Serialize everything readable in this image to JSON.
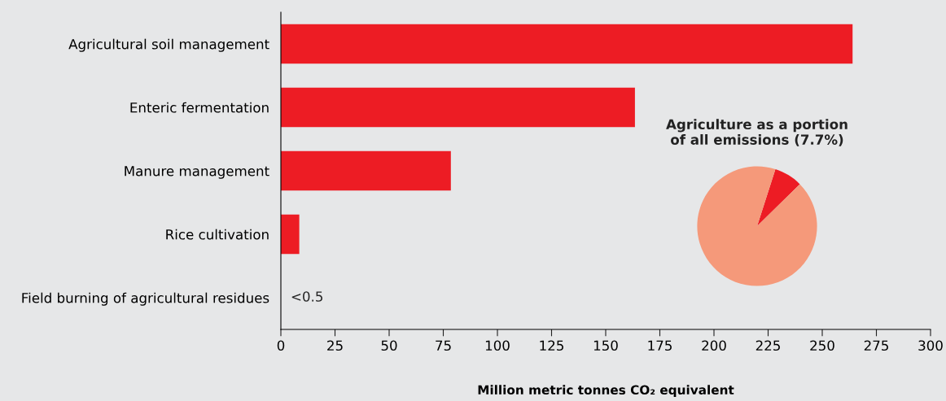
{
  "chart_data": [
    {
      "type": "bar",
      "orientation": "horizontal",
      "categories": [
        "Agricultural soil management",
        "Enteric fermentation",
        "Manure management",
        "Rice cultivation",
        "Field burning of agricultural residues"
      ],
      "values": [
        264,
        163.5,
        78.5,
        8.5,
        null
      ],
      "value_labels": [
        null,
        null,
        null,
        null,
        "<0.5"
      ],
      "color": "#ed1c24",
      "xlabel": "Million metric tonnes CO₂ equivalent",
      "xlim": [
        0,
        300
      ],
      "xticks": [
        0,
        25,
        50,
        75,
        100,
        125,
        150,
        175,
        200,
        225,
        250,
        275,
        300
      ],
      "grid": false,
      "legend": false
    },
    {
      "type": "pie",
      "title": "Agriculture as a portion\nof all emissions (7.7%)",
      "categories": [
        null,
        null
      ],
      "values": [
        7.7,
        92.3
      ],
      "colors": [
        "#ed1c24",
        "#f5997a"
      ]
    }
  ]
}
